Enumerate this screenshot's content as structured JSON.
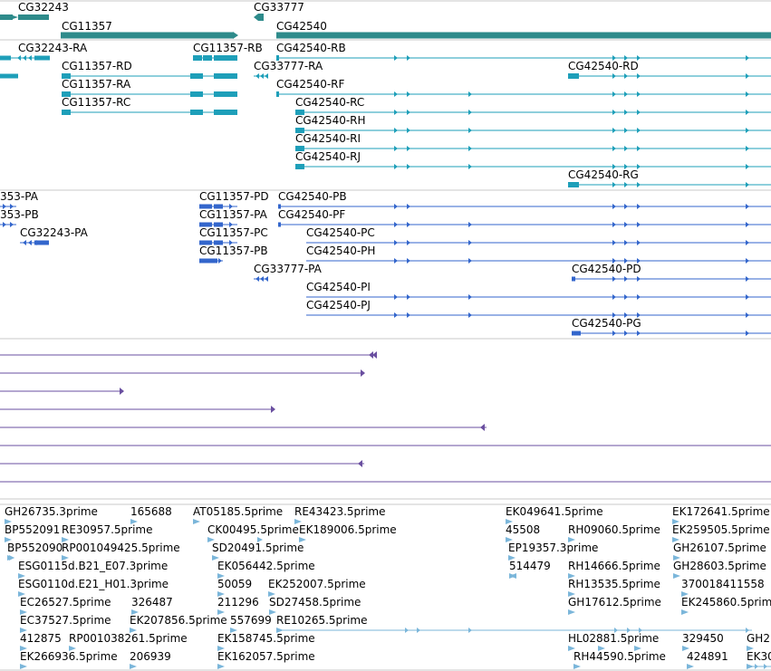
{
  "colors": {
    "gene": "#2E8B8B",
    "transcript": "#1E9FB9",
    "protein": "#3366CC",
    "alignment": "#6A4FA0",
    "est": "#7BB6DA",
    "separator": "#C8C8C8"
  },
  "tracks": {
    "genes": [
      {
        "name": "CG32243"
      },
      {
        "name": "CG33777"
      },
      {
        "name": "CG11357"
      },
      {
        "name": "CG42540"
      }
    ],
    "transcripts": [
      {
        "name": "CG32243-RA"
      },
      {
        "name": "CG11357-RB"
      },
      {
        "name": "CG42540-RB"
      },
      {
        "name": "CG11357-RD"
      },
      {
        "name": "CG33777-RA"
      },
      {
        "name": "CG42540-RD"
      },
      {
        "name": "CG11357-RA"
      },
      {
        "name": "CG42540-RF"
      },
      {
        "name": "CG11357-RC"
      },
      {
        "name": "CG42540-RC"
      },
      {
        "name": "CG42540-RH"
      },
      {
        "name": "CG42540-RI"
      },
      {
        "name": "CG42540-RJ"
      },
      {
        "name": "CG42540-RG"
      }
    ],
    "proteins": [
      {
        "name": "353-PA"
      },
      {
        "name": "CG11357-PD"
      },
      {
        "name": "CG42540-PB"
      },
      {
        "name": "353-PB"
      },
      {
        "name": "CG11357-PA"
      },
      {
        "name": "CG42540-PF"
      },
      {
        "name": "CG32243-PA"
      },
      {
        "name": "CG11357-PC"
      },
      {
        "name": "CG42540-PC"
      },
      {
        "name": "CG11357-PB"
      },
      {
        "name": "CG42540-PH"
      },
      {
        "name": "CG33777-PA"
      },
      {
        "name": "CG42540-PD"
      },
      {
        "name": "CG42540-PI"
      },
      {
        "name": "CG42540-PJ"
      },
      {
        "name": "CG42540-PG"
      }
    ],
    "ests": [
      {
        "name": "GH26735.3prime"
      },
      {
        "name": "165688"
      },
      {
        "name": "AT05185.5prime"
      },
      {
        "name": "RE43423.5prime"
      },
      {
        "name": "EK049641.5prime"
      },
      {
        "name": "EK172641.5prime"
      },
      {
        "name": "BP552091"
      },
      {
        "name": "RE30957.5prime"
      },
      {
        "name": "CK00495.5prime"
      },
      {
        "name": "EK189006.5prime"
      },
      {
        "name": "45508"
      },
      {
        "name": "RH09060.5prime"
      },
      {
        "name": "EK259505.5prime"
      },
      {
        "name": "BP552090"
      },
      {
        "name": "RP001049425.5prime"
      },
      {
        "name": "SD20491.5prime"
      },
      {
        "name": "EP19357.3prime"
      },
      {
        "name": "GH26107.5prime"
      },
      {
        "name": "ESG0115d.B21_E07.3prime"
      },
      {
        "name": "EK056442.5prime"
      },
      {
        "name": "514479"
      },
      {
        "name": "RH14666.5prime"
      },
      {
        "name": "GH28603.5prime"
      },
      {
        "name": "ESG0110d.E21_H01.3prime"
      },
      {
        "name": "50059"
      },
      {
        "name": "EK252007.5prime"
      },
      {
        "name": "RH13535.5prime"
      },
      {
        "name": "370018411558"
      },
      {
        "name": "EC26527.5prime"
      },
      {
        "name": "326487"
      },
      {
        "name": "211296"
      },
      {
        "name": "SD27458.5prime"
      },
      {
        "name": "GH17612.5prime"
      },
      {
        "name": "EK245860.5prime"
      },
      {
        "name": "EC37527.5prime"
      },
      {
        "name": "EK207856.5prime"
      },
      {
        "name": "557699"
      },
      {
        "name": "RE10265.5prime"
      },
      {
        "name": "412875"
      },
      {
        "name": "RP001038261.5prime"
      },
      {
        "name": "EK158745.5prime"
      },
      {
        "name": "HL02881.5prime"
      },
      {
        "name": "329450"
      },
      {
        "name": "GH2"
      },
      {
        "name": "EK266936.5prime"
      },
      {
        "name": "206939"
      },
      {
        "name": "EK162057.5prime"
      },
      {
        "name": "RH44590.5prime"
      },
      {
        "name": "424891"
      },
      {
        "name": "EK30"
      }
    ]
  }
}
